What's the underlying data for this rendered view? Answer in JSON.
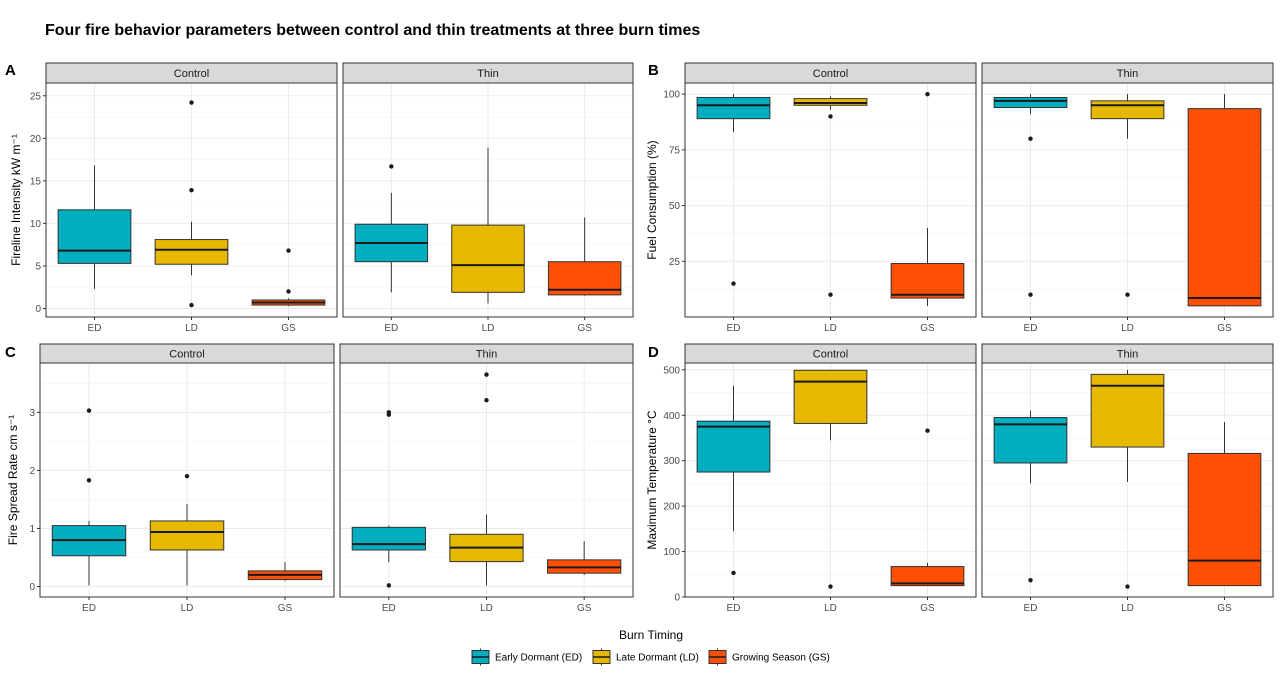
{
  "title": "Four fire behavior parameters between control and thin treatments at three burn times",
  "legend": {
    "title": "Burn Timing",
    "placement": "bottom",
    "items": [
      {
        "label": "Early Dormant (ED)",
        "color": "#00AEC0"
      },
      {
        "label": "Late Dormant (LD)",
        "color": "#E6B800"
      },
      {
        "label": "Growing Season (GS)",
        "color": "#FF5005"
      }
    ]
  },
  "chart_data": [
    {
      "type": "boxplot",
      "panel_label": "A",
      "ylabel": "Fireline Intensity  kW m⁻¹",
      "ylim": [
        -1,
        26.5
      ],
      "yticks": [
        0,
        5,
        10,
        15,
        20,
        25
      ],
      "categories": [
        "ED",
        "LD",
        "GS"
      ],
      "facets": [
        {
          "name": "Control",
          "boxes": [
            {
              "category": "ED",
              "min": 2.3,
              "q1": 5.3,
              "median": 6.8,
              "q3": 11.6,
              "max": 16.8,
              "outliers": []
            },
            {
              "category": "LD",
              "min": 3.9,
              "q1": 5.2,
              "median": 6.9,
              "q3": 8.1,
              "max": 10.2,
              "outliers": [
                24.2,
                13.9,
                0.4
              ]
            },
            {
              "category": "GS",
              "min": 0.3,
              "q1": 0.4,
              "median": 0.7,
              "q3": 1.0,
              "max": 1.2,
              "outliers": [
                6.8,
                2.0
              ]
            }
          ]
        },
        {
          "name": "Thin",
          "boxes": [
            {
              "category": "ED",
              "min": 1.9,
              "q1": 5.5,
              "median": 7.7,
              "q3": 9.9,
              "max": 13.6,
              "outliers": [
                16.7
              ]
            },
            {
              "category": "LD",
              "min": 0.6,
              "q1": 1.9,
              "median": 5.1,
              "q3": 9.8,
              "max": 18.9,
              "outliers": []
            },
            {
              "category": "GS",
              "min": 1.5,
              "q1": 1.6,
              "median": 2.2,
              "q3": 5.5,
              "max": 10.7,
              "outliers": []
            }
          ]
        }
      ]
    },
    {
      "type": "boxplot",
      "panel_label": "B",
      "ylabel": "Fuel Consumption (%)",
      "ylim": [
        0,
        105
      ],
      "yticks": [
        25,
        50,
        75,
        100
      ],
      "categories": [
        "ED",
        "LD",
        "GS"
      ],
      "facets": [
        {
          "name": "Control",
          "boxes": [
            {
              "category": "ED",
              "min": 83,
              "q1": 89,
              "median": 95,
              "q3": 98.5,
              "max": 100,
              "outliers": [
                15
              ]
            },
            {
              "category": "LD",
              "min": 93,
              "q1": 95,
              "median": 96,
              "q3": 98,
              "max": 99,
              "outliers": [
                90,
                10
              ]
            },
            {
              "category": "GS",
              "min": 5,
              "q1": 8.5,
              "median": 10,
              "q3": 24,
              "max": 40,
              "outliers": [
                100
              ]
            }
          ]
        },
        {
          "name": "Thin",
          "boxes": [
            {
              "category": "ED",
              "min": 91,
              "q1": 94,
              "median": 97,
              "q3": 98.5,
              "max": 100,
              "outliers": [
                80,
                10
              ]
            },
            {
              "category": "LD",
              "min": 80,
              "q1": 89,
              "median": 95,
              "q3": 97,
              "max": 100,
              "outliers": [
                10
              ]
            },
            {
              "category": "GS",
              "min": 5,
              "q1": 5,
              "median": 8.5,
              "q3": 93.5,
              "max": 100,
              "outliers": []
            }
          ]
        }
      ]
    },
    {
      "type": "boxplot",
      "panel_label": "C",
      "ylabel": "Fire Spread Rate  cm  s⁻¹",
      "ylim": [
        -0.18,
        3.85
      ],
      "yticks": [
        0,
        1,
        2,
        3
      ],
      "categories": [
        "ED",
        "LD",
        "GS"
      ],
      "facets": [
        {
          "name": "Control",
          "boxes": [
            {
              "category": "ED",
              "min": 0.02,
              "q1": 0.53,
              "median": 0.8,
              "q3": 1.05,
              "max": 1.13,
              "outliers": [
                3.03,
                1.83
              ]
            },
            {
              "category": "LD",
              "min": 0.02,
              "q1": 0.63,
              "median": 0.94,
              "q3": 1.13,
              "max": 1.42,
              "outliers": [
                1.9
              ]
            },
            {
              "category": "GS",
              "min": 0.1,
              "q1": 0.12,
              "median": 0.2,
              "q3": 0.27,
              "max": 0.42,
              "outliers": []
            }
          ]
        },
        {
          "name": "Thin",
          "boxes": [
            {
              "category": "ED",
              "min": 0.42,
              "q1": 0.63,
              "median": 0.73,
              "q3": 1.02,
              "max": 1.05,
              "outliers": [
                3.0,
                2.96,
                0.02
              ]
            },
            {
              "category": "LD",
              "min": 0.02,
              "q1": 0.43,
              "median": 0.67,
              "q3": 0.9,
              "max": 1.24,
              "outliers": [
                3.65,
                3.21
              ]
            },
            {
              "category": "GS",
              "min": 0.2,
              "q1": 0.23,
              "median": 0.33,
              "q3": 0.46,
              "max": 0.78,
              "outliers": []
            }
          ]
        }
      ]
    },
    {
      "type": "boxplot",
      "panel_label": "D",
      "ylabel": "Maximum Temperature °C",
      "ylim": [
        0,
        515
      ],
      "yticks": [
        0,
        100,
        200,
        300,
        400,
        500
      ],
      "categories": [
        "ED",
        "LD",
        "GS"
      ],
      "facets": [
        {
          "name": "Control",
          "boxes": [
            {
              "category": "ED",
              "min": 145,
              "q1": 275,
              "median": 375,
              "q3": 387,
              "max": 465,
              "outliers": [
                53
              ]
            },
            {
              "category": "LD",
              "min": 345,
              "q1": 382,
              "median": 474,
              "q3": 499,
              "max": 500,
              "outliers": [
                23
              ]
            },
            {
              "category": "GS",
              "min": 25,
              "q1": 25,
              "median": 30,
              "q3": 67,
              "max": 75,
              "outliers": [
                366
              ]
            }
          ]
        },
        {
          "name": "Thin",
          "boxes": [
            {
              "category": "ED",
              "min": 250,
              "q1": 295,
              "median": 380,
              "q3": 395,
              "max": 410,
              "outliers": [
                37
              ]
            },
            {
              "category": "LD",
              "min": 253,
              "q1": 330,
              "median": 465,
              "q3": 490,
              "max": 500,
              "outliers": [
                23
              ]
            },
            {
              "category": "GS",
              "min": 25,
              "q1": 25,
              "median": 80,
              "q3": 316,
              "max": 385,
              "outliers": []
            }
          ]
        }
      ]
    }
  ]
}
